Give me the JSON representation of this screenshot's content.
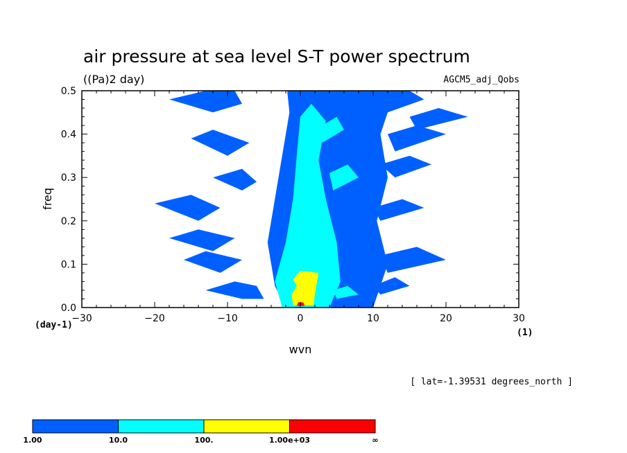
{
  "chart_data": {
    "type": "heatmap",
    "title": "air pressure at sea level S-T power spectrum",
    "units": "((Pa)2 day)",
    "dataset": "AGCM5_adj_Qobs",
    "xlabel": "wvn",
    "ylabel": "freq",
    "x_unit": "(1)",
    "y_unit": "(day-1)",
    "xlim": [
      -30,
      30
    ],
    "ylim": [
      0,
      0.5
    ],
    "x_ticks": [
      -30,
      -20,
      -10,
      0,
      10,
      20,
      30
    ],
    "x_tick_labels": [
      "−30",
      "−20",
      "−10",
      "0",
      "10",
      "20",
      "30"
    ],
    "y_ticks": [
      0.0,
      0.1,
      0.2,
      0.3,
      0.4,
      0.5
    ],
    "y_tick_labels": [
      "0.0",
      "0.1",
      "0.2",
      "0.3",
      "0.4",
      "0.5"
    ],
    "annotation": "[ lat=-1.39531 degrees_north ]",
    "colorbar": {
      "levels": [
        "1.00",
        "10.0",
        "100.",
        "1.00e+03",
        "∞"
      ],
      "colors": [
        "#0060ff",
        "#00ffff",
        "#ffff00",
        "#ff0000"
      ]
    },
    "regions": [
      {
        "level": 0,
        "points": [
          [
            -2,
            0.0
          ],
          [
            -3.5,
            0.05
          ],
          [
            -4.5,
            0.15
          ],
          [
            -3.5,
            0.25
          ],
          [
            -2.5,
            0.35
          ],
          [
            -1.5,
            0.45
          ],
          [
            -1.8,
            0.5
          ],
          [
            13,
            0.5
          ],
          [
            11,
            0.4
          ],
          [
            12,
            0.3
          ],
          [
            10.5,
            0.2
          ],
          [
            12,
            0.1
          ],
          [
            10,
            0.0
          ]
        ]
      },
      {
        "level": 0,
        "points": [
          [
            -8,
            0.02
          ],
          [
            -13,
            0.04
          ],
          [
            -9,
            0.06
          ],
          [
            -6,
            0.05
          ],
          [
            -5,
            0.02
          ]
        ]
      },
      {
        "level": 0,
        "points": [
          [
            -11,
            0.08
          ],
          [
            -16,
            0.11
          ],
          [
            -13,
            0.13
          ],
          [
            -8,
            0.11
          ]
        ]
      },
      {
        "level": 0,
        "points": [
          [
            -12,
            0.13
          ],
          [
            -18,
            0.16
          ],
          [
            -14,
            0.18
          ],
          [
            -9,
            0.16
          ]
        ]
      },
      {
        "level": 0,
        "points": [
          [
            -14,
            0.2
          ],
          [
            -20,
            0.24
          ],
          [
            -15,
            0.26
          ],
          [
            -11,
            0.23
          ]
        ]
      },
      {
        "level": 0,
        "points": [
          [
            -8,
            0.27
          ],
          [
            -12,
            0.3
          ],
          [
            -8,
            0.32
          ],
          [
            -6,
            0.29
          ]
        ]
      },
      {
        "level": 0,
        "points": [
          [
            -10,
            0.35
          ],
          [
            -15,
            0.39
          ],
          [
            -12,
            0.41
          ],
          [
            -7,
            0.38
          ]
        ]
      },
      {
        "level": 0,
        "points": [
          [
            -12,
            0.45
          ],
          [
            -18,
            0.48
          ],
          [
            -13,
            0.5
          ],
          [
            -9,
            0.5
          ],
          [
            -8,
            0.47
          ]
        ]
      },
      {
        "level": 0,
        "points": [
          [
            11,
            0.03
          ],
          [
            15,
            0.05
          ],
          [
            13,
            0.07
          ],
          [
            10,
            0.05
          ]
        ]
      },
      {
        "level": 0,
        "points": [
          [
            12,
            0.08
          ],
          [
            20,
            0.11
          ],
          [
            16,
            0.14
          ],
          [
            11,
            0.12
          ]
        ]
      },
      {
        "level": 0,
        "points": [
          [
            11,
            0.2
          ],
          [
            17,
            0.23
          ],
          [
            14,
            0.25
          ],
          [
            10,
            0.23
          ]
        ]
      },
      {
        "level": 0,
        "points": [
          [
            13,
            0.3
          ],
          [
            18,
            0.33
          ],
          [
            15,
            0.35
          ],
          [
            11,
            0.33
          ]
        ]
      },
      {
        "level": 0,
        "points": [
          [
            13,
            0.36
          ],
          [
            20,
            0.4
          ],
          [
            16,
            0.42
          ],
          [
            12,
            0.4
          ]
        ]
      },
      {
        "level": 0,
        "points": [
          [
            16,
            0.41
          ],
          [
            23,
            0.44
          ],
          [
            19,
            0.46
          ],
          [
            15,
            0.44
          ]
        ]
      },
      {
        "level": 0,
        "points": [
          [
            12,
            0.45
          ],
          [
            17,
            0.48
          ],
          [
            15,
            0.5
          ],
          [
            11,
            0.5
          ],
          [
            10.5,
            0.47
          ]
        ]
      },
      {
        "level": 1,
        "points": [
          [
            -2.5,
            0.0
          ],
          [
            -3.5,
            0.06
          ],
          [
            -2,
            0.15
          ],
          [
            -1,
            0.25
          ],
          [
            -0.5,
            0.35
          ],
          [
            0,
            0.44
          ],
          [
            1.5,
            0.47
          ],
          [
            3.5,
            0.43
          ],
          [
            2.5,
            0.34
          ],
          [
            3.5,
            0.25
          ],
          [
            5,
            0.15
          ],
          [
            5.5,
            0.06
          ],
          [
            4,
            0.0
          ]
        ]
      },
      {
        "level": 1,
        "points": [
          [
            4.5,
            0.27
          ],
          [
            8,
            0.3
          ],
          [
            6.5,
            0.33
          ],
          [
            4,
            0.31
          ]
        ]
      },
      {
        "level": 1,
        "points": [
          [
            3,
            0.38
          ],
          [
            6,
            0.41
          ],
          [
            5,
            0.44
          ],
          [
            3,
            0.42
          ]
        ]
      },
      {
        "level": 1,
        "points": [
          [
            5,
            0.02
          ],
          [
            8,
            0.03
          ],
          [
            6.5,
            0.05
          ],
          [
            4.5,
            0.04
          ]
        ]
      },
      {
        "level": 2,
        "points": [
          [
            -1,
            0.005
          ],
          [
            -1.2,
            0.03
          ],
          [
            -0.5,
            0.05
          ],
          [
            -1,
            0.065
          ],
          [
            0,
            0.085
          ],
          [
            2.5,
            0.08
          ],
          [
            2.3,
            0.06
          ],
          [
            2.0,
            0.03
          ],
          [
            1.8,
            0.005
          ]
        ]
      },
      {
        "level": 3,
        "points": [
          [
            -0.5,
            0.004
          ],
          [
            -0.3,
            0.012
          ],
          [
            0.4,
            0.012
          ],
          [
            0.6,
            0.004
          ]
        ]
      }
    ]
  }
}
